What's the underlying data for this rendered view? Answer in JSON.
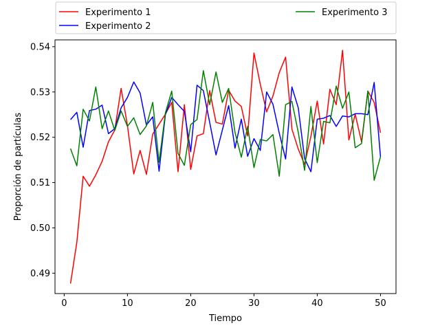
{
  "chart_data": {
    "type": "line",
    "xlabel": "Tiempo",
    "ylabel": "Proporción de partículas",
    "xlim": [
      -1.45,
      52.45
    ],
    "ylim": [
      0.4855,
      0.5415
    ],
    "x_ticks": [
      0,
      10,
      20,
      30,
      40,
      50
    ],
    "y_ticks": [
      0.49,
      0.5,
      0.51,
      0.52,
      0.53,
      0.54
    ],
    "legend_position": "top, above plot, two columns",
    "series": [
      {
        "name": "Experimento 1",
        "color": "#ff0000",
        "x": [
          1,
          2,
          3,
          4,
          5,
          6,
          7,
          8,
          9,
          10,
          11,
          12,
          13,
          14,
          15,
          16,
          17,
          18,
          19,
          20,
          21,
          22,
          23,
          24,
          25,
          26,
          27,
          28,
          29,
          30,
          31,
          32,
          33,
          34,
          35,
          36,
          37,
          38,
          39,
          40,
          41,
          42,
          43,
          44,
          45,
          46,
          47,
          48,
          49,
          50
        ],
        "values": [
          0.4877,
          0.4968,
          0.5114,
          0.5092,
          0.5117,
          0.5147,
          0.519,
          0.5216,
          0.5308,
          0.5226,
          0.5119,
          0.5171,
          0.5118,
          0.5207,
          0.5229,
          0.5251,
          0.5277,
          0.5124,
          0.5272,
          0.5129,
          0.5203,
          0.5208,
          0.5303,
          0.5233,
          0.5229,
          0.5304,
          0.528,
          0.5268,
          0.5203,
          0.5386,
          0.5317,
          0.5256,
          0.5291,
          0.5343,
          0.5377,
          0.5218,
          0.5174,
          0.514,
          0.5202,
          0.528,
          0.5185,
          0.5306,
          0.5272,
          0.5392,
          0.5194,
          0.5251,
          0.519,
          0.5302,
          0.5277,
          0.521
        ]
      },
      {
        "name": "Experimento 2",
        "color": "#0000ff",
        "x": [
          1,
          2,
          3,
          4,
          5,
          6,
          7,
          8,
          9,
          10,
          11,
          12,
          13,
          14,
          15,
          16,
          17,
          18,
          19,
          20,
          21,
          22,
          23,
          24,
          25,
          26,
          27,
          28,
          29,
          30,
          31,
          32,
          33,
          34,
          35,
          36,
          37,
          38,
          39,
          40,
          41,
          42,
          43,
          44,
          45,
          46,
          47,
          48,
          49,
          50
        ],
        "values": [
          0.5239,
          0.5255,
          0.5178,
          0.5259,
          0.5262,
          0.5271,
          0.5208,
          0.5219,
          0.5265,
          0.5288,
          0.5322,
          0.5298,
          0.5227,
          0.5245,
          0.5125,
          0.525,
          0.5288,
          0.5272,
          0.5257,
          0.5168,
          0.5315,
          0.5303,
          0.5233,
          0.5161,
          0.5216,
          0.527,
          0.5176,
          0.524,
          0.5158,
          0.5197,
          0.5171,
          0.53,
          0.5273,
          0.5209,
          0.5152,
          0.5311,
          0.5265,
          0.5153,
          0.5124,
          0.524,
          0.5242,
          0.5248,
          0.5224,
          0.5247,
          0.5245,
          0.5252,
          0.5252,
          0.525,
          0.5321,
          0.5157
        ]
      },
      {
        "name": "Experimento 3",
        "color": "#008000",
        "x": [
          1,
          2,
          3,
          4,
          5,
          6,
          7,
          8,
          9,
          10,
          11,
          12,
          13,
          14,
          15,
          16,
          17,
          18,
          19,
          20,
          21,
          22,
          23,
          24,
          25,
          26,
          27,
          28,
          29,
          30,
          31,
          32,
          33,
          34,
          35,
          36,
          37,
          38,
          39,
          40,
          41,
          42,
          43,
          44,
          45,
          46,
          47,
          48,
          49,
          50
        ],
        "values": [
          0.5175,
          0.5137,
          0.5262,
          0.5236,
          0.5311,
          0.5219,
          0.5258,
          0.5215,
          0.5258,
          0.5224,
          0.5243,
          0.5206,
          0.5225,
          0.5277,
          0.5145,
          0.5254,
          0.5302,
          0.5164,
          0.5138,
          0.5228,
          0.5239,
          0.5347,
          0.5272,
          0.5344,
          0.5277,
          0.5308,
          0.5211,
          0.5156,
          0.5224,
          0.5133,
          0.5195,
          0.5192,
          0.5206,
          0.5114,
          0.5272,
          0.5279,
          0.5211,
          0.5127,
          0.5268,
          0.5144,
          0.5235,
          0.5232,
          0.5313,
          0.5264,
          0.53,
          0.5177,
          0.5186,
          0.5302,
          0.5105,
          0.5157
        ]
      }
    ]
  }
}
